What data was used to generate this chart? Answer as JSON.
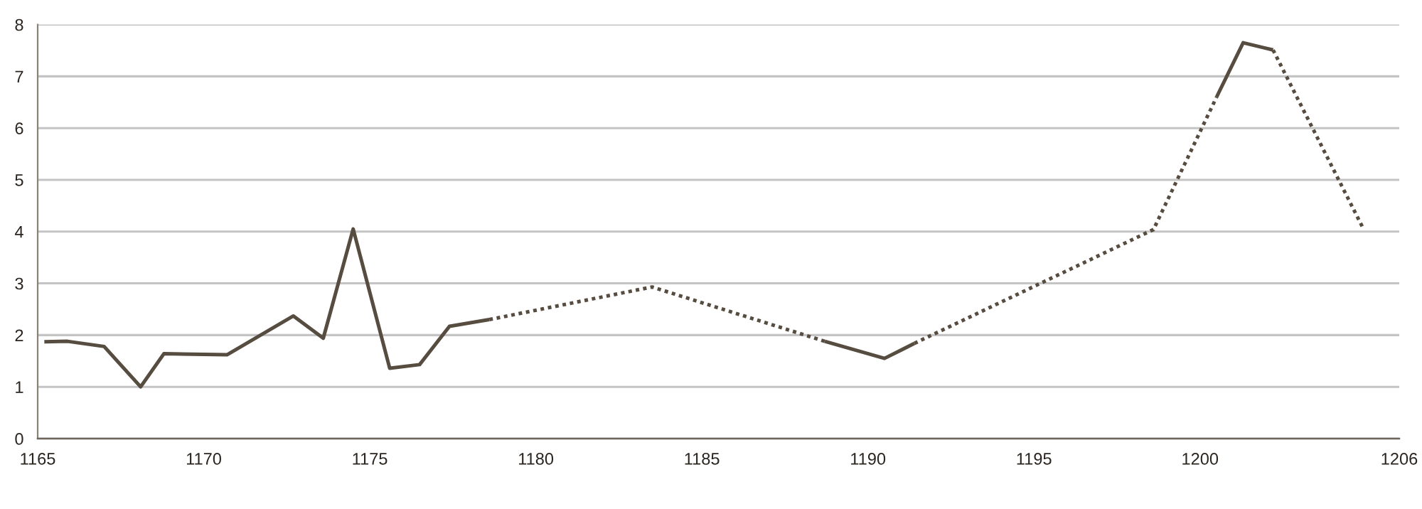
{
  "chart_data": {
    "type": "line",
    "series": [
      {
        "color": "#564c40",
        "line_style": "solid",
        "x": [
          1165.2,
          1165.9,
          1167.0,
          1168.1,
          1168.8,
          1170.7,
          1172.7,
          1173.6,
          1174.5,
          1175.6,
          1176.5,
          1177.4,
          1178.6
        ],
        "values": [
          1.87,
          1.88,
          1.78,
          1.0,
          1.64,
          1.62,
          2.37,
          1.94,
          4.05,
          1.36,
          1.43,
          2.17,
          2.3
        ]
      },
      {
        "color": "#564c40",
        "line_style": "dotted",
        "x": [
          1178.6,
          1183.5,
          1188.7
        ],
        "values": [
          2.3,
          2.93,
          1.88
        ]
      },
      {
        "color": "#564c40",
        "line_style": "solid",
        "x": [
          1188.7,
          1190.5,
          1191.4
        ],
        "values": [
          1.88,
          1.55,
          1.84
        ]
      },
      {
        "color": "#564c40",
        "line_style": "dotted",
        "x": [
          1191.4,
          1198.6,
          1200.5
        ],
        "values": [
          1.84,
          4.04,
          6.6
        ]
      },
      {
        "color": "#564c40",
        "line_style": "solid",
        "x": [
          1200.5,
          1201.3,
          1202.2
        ],
        "values": [
          6.6,
          7.65,
          7.51
        ]
      },
      {
        "color": "#564c40",
        "line_style": "dotted",
        "x": [
          1202.2,
          1204.9
        ],
        "values": [
          7.51,
          4.08
        ]
      }
    ],
    "xlim": [
      1165,
      1206
    ],
    "xticks": [
      1165,
      1170,
      1175,
      1180,
      1185,
      1190,
      1195,
      1200,
      1206
    ],
    "ylim": [
      0,
      8
    ],
    "yticks": [
      0,
      1,
      2,
      3,
      4,
      5,
      6,
      7,
      8
    ],
    "grid": "y"
  }
}
